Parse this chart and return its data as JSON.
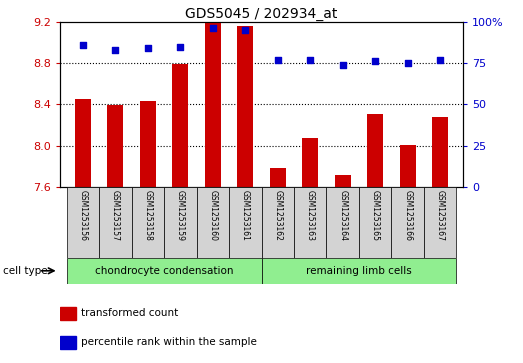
{
  "title": "GDS5045 / 202934_at",
  "samples": [
    "GSM1253156",
    "GSM1253157",
    "GSM1253158",
    "GSM1253159",
    "GSM1253160",
    "GSM1253161",
    "GSM1253162",
    "GSM1253163",
    "GSM1253164",
    "GSM1253165",
    "GSM1253166",
    "GSM1253167"
  ],
  "bar_values": [
    8.45,
    8.39,
    8.43,
    8.79,
    9.19,
    9.16,
    7.78,
    8.07,
    7.72,
    8.31,
    8.01,
    8.28
  ],
  "percentile_values": [
    86,
    83,
    84,
    85,
    96,
    95,
    77,
    77,
    74,
    76,
    75,
    77
  ],
  "ylim_left": [
    7.6,
    9.2
  ],
  "ylim_right": [
    0,
    100
  ],
  "yticks_left": [
    7.6,
    8.0,
    8.4,
    8.8,
    9.2
  ],
  "yticks_right": [
    0,
    25,
    50,
    75,
    100
  ],
  "bar_color": "#cc0000",
  "dot_color": "#0000cc",
  "cell_type_groups": [
    {
      "label": "chondrocyte condensation",
      "start": 0,
      "end": 5,
      "color": "#90ee90"
    },
    {
      "label": "remaining limb cells",
      "start": 6,
      "end": 11,
      "color": "#90ee90"
    }
  ],
  "cell_type_label": "cell type",
  "legend_bar_label": "transformed count",
  "legend_dot_label": "percentile rank within the sample",
  "bar_bottom": 7.6,
  "tick_label_color_left": "#cc0000",
  "tick_label_color_right": "#0000cc"
}
